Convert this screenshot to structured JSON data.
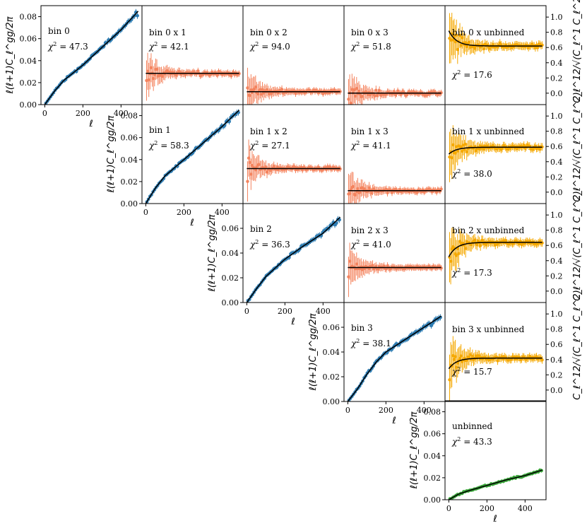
{
  "figure": {
    "auto_label": "ℓ(ℓ+1)C_ℓ^gg/2π",
    "ratio_label": "C_ℓ^12/√(C_ℓ^1 C_ℓ^2)",
    "x_label": "ℓ"
  },
  "colors": {
    "auto": "#2f7db3",
    "cross": "#f4845f",
    "unbinned": "#f5a800",
    "full": "#3aa63a",
    "model": "#000000"
  },
  "chart_data": [
    {
      "id": "bin0",
      "row": 0,
      "col": 0,
      "type": "scatter",
      "kind": "auto",
      "label": "bin 0",
      "chi2": "47.3",
      "ylim": [
        0,
        0.09
      ],
      "yticks": [
        "0.00",
        "0.02",
        "0.04",
        "0.06",
        "0.08"
      ],
      "ytick_values": [
        0,
        0.02,
        0.04,
        0.06,
        0.08
      ],
      "xticks": [
        "0",
        "200",
        "400"
      ],
      "xtick_values": [
        0,
        200,
        400
      ],
      "xlim": [
        -20,
        510
      ],
      "model": [
        [
          0,
          0
        ],
        [
          50,
          0.012
        ],
        [
          100,
          0.022
        ],
        [
          200,
          0.036
        ],
        [
          300,
          0.052
        ],
        [
          400,
          0.068
        ],
        [
          490,
          0.085
        ]
      ],
      "color": "#2f7db3"
    },
    {
      "id": "bin0x1",
      "row": 0,
      "col": 1,
      "type": "scatter",
      "kind": "cross",
      "label": "bin 0 x 1",
      "chi2": "42.1",
      "ylim": [
        -0.15,
        1.15
      ],
      "xlim": [
        -20,
        510
      ],
      "level": 0.26,
      "noise": 0.08,
      "color": "#f4845f"
    },
    {
      "id": "bin0x2",
      "row": 0,
      "col": 2,
      "type": "scatter",
      "kind": "cross",
      "label": "bin 0 x 2",
      "chi2": "94.0",
      "ylim": [
        -0.15,
        1.15
      ],
      "xlim": [
        -20,
        510
      ],
      "level": 0.02,
      "noise": 0.08,
      "color": "#f4845f"
    },
    {
      "id": "bin0x3",
      "row": 0,
      "col": 3,
      "type": "scatter",
      "kind": "cross",
      "label": "bin 0 x 3",
      "chi2": "51.8",
      "ylim": [
        -0.15,
        1.15
      ],
      "xlim": [
        -20,
        510
      ],
      "level": 0.0,
      "noise": 0.08,
      "color": "#f4845f"
    },
    {
      "id": "bin0xU",
      "row": 0,
      "col": 4,
      "type": "scatter",
      "kind": "ratio",
      "label": "bin 0 x unbinned",
      "chi2": "17.6",
      "ylim": [
        -0.15,
        1.15
      ],
      "yticks": [
        "0.0",
        "0.2",
        "0.4",
        "0.6",
        "0.8",
        "1.0"
      ],
      "ytick_values": [
        0,
        0.2,
        0.4,
        0.6,
        0.8,
        1.0
      ],
      "xlim": [
        -20,
        510
      ],
      "level": 0.62,
      "start": 0.82,
      "color": "#f5a800"
    },
    {
      "id": "bin1",
      "row": 1,
      "col": 1,
      "type": "scatter",
      "kind": "auto",
      "label": "bin 1",
      "chi2": "58.3",
      "ylim": [
        0,
        0.09
      ],
      "yticks": [
        "0.00",
        "0.02",
        "0.04",
        "0.06",
        "0.08"
      ],
      "ytick_values": [
        0,
        0.02,
        0.04,
        0.06,
        0.08
      ],
      "xticks": [
        "0",
        "200",
        "400"
      ],
      "xtick_values": [
        0,
        200,
        400
      ],
      "xlim": [
        -20,
        510
      ],
      "model": [
        [
          0,
          0
        ],
        [
          50,
          0.014
        ],
        [
          100,
          0.025
        ],
        [
          200,
          0.04
        ],
        [
          300,
          0.055
        ],
        [
          400,
          0.07
        ],
        [
          490,
          0.085
        ]
      ],
      "color": "#2f7db3"
    },
    {
      "id": "bin1x2",
      "row": 1,
      "col": 2,
      "type": "scatter",
      "kind": "cross",
      "label": "bin 1 x 2",
      "chi2": "27.1",
      "ylim": [
        -0.15,
        1.15
      ],
      "xlim": [
        -20,
        510
      ],
      "level": 0.31,
      "noise": 0.07,
      "color": "#f4845f"
    },
    {
      "id": "bin1x3",
      "row": 1,
      "col": 3,
      "type": "scatter",
      "kind": "cross",
      "label": "bin 1 x 3",
      "chi2": "41.1",
      "ylim": [
        -0.15,
        1.15
      ],
      "xlim": [
        -20,
        510
      ],
      "level": 0.02,
      "noise": 0.07,
      "color": "#f4845f"
    },
    {
      "id": "bin1xU",
      "row": 1,
      "col": 4,
      "type": "scatter",
      "kind": "ratio",
      "label": "bin 1 x unbinned",
      "chi2": "38.0",
      "ylim": [
        -0.15,
        1.15
      ],
      "yticks": [
        "0.0",
        "0.2",
        "0.4",
        "0.6",
        "0.8",
        "1.0"
      ],
      "ytick_values": [
        0,
        0.2,
        0.4,
        0.6,
        0.8,
        1.0
      ],
      "xlim": [
        -20,
        510
      ],
      "level": 0.59,
      "start": 0.5,
      "color": "#f5a800"
    },
    {
      "id": "bin2",
      "row": 2,
      "col": 2,
      "type": "scatter",
      "kind": "auto",
      "label": "bin 2",
      "chi2": "36.3",
      "ylim": [
        0,
        0.08
      ],
      "yticks": [
        "0.00",
        "0.02",
        "0.04",
        "0.06"
      ],
      "ytick_values": [
        0,
        0.02,
        0.04,
        0.06
      ],
      "xticks": [
        "0",
        "200",
        "400"
      ],
      "xtick_values": [
        0,
        200,
        400
      ],
      "xlim": [
        -20,
        510
      ],
      "model": [
        [
          0,
          0
        ],
        [
          50,
          0.011
        ],
        [
          100,
          0.021
        ],
        [
          200,
          0.035
        ],
        [
          300,
          0.046
        ],
        [
          400,
          0.056
        ],
        [
          490,
          0.069
        ]
      ],
      "color": "#2f7db3"
    },
    {
      "id": "bin2x3",
      "row": 2,
      "col": 3,
      "type": "scatter",
      "kind": "cross",
      "label": "bin 2 x 3",
      "chi2": "41.0",
      "ylim": [
        -0.15,
        1.15
      ],
      "xlim": [
        -20,
        510
      ],
      "level": 0.31,
      "noise": 0.06,
      "color": "#f4845f"
    },
    {
      "id": "bin2xU",
      "row": 2,
      "col": 4,
      "type": "scatter",
      "kind": "ratio",
      "label": "bin 2 x unbinned",
      "chi2": "17.3",
      "ylim": [
        -0.15,
        1.15
      ],
      "yticks": [
        "0.0",
        "0.2",
        "0.4",
        "0.6",
        "0.8",
        "1.0"
      ],
      "ytick_values": [
        0,
        0.2,
        0.4,
        0.6,
        0.8,
        1.0
      ],
      "xlim": [
        -20,
        510
      ],
      "level": 0.64,
      "start": 0.45,
      "color": "#f5a800"
    },
    {
      "id": "bin3",
      "row": 3,
      "col": 3,
      "type": "scatter",
      "kind": "auto",
      "label": "bin 3",
      "chi2": "38.1",
      "ylim": [
        0,
        0.08
      ],
      "yticks": [
        "0.00",
        "0.02",
        "0.04",
        "0.06"
      ],
      "ytick_values": [
        0,
        0.02,
        0.04,
        0.06
      ],
      "xticks": [
        "0",
        "200",
        "400"
      ],
      "xtick_values": [
        0,
        200,
        400
      ],
      "xlim": [
        -20,
        510
      ],
      "model": [
        [
          0,
          0
        ],
        [
          50,
          0.01
        ],
        [
          100,
          0.022
        ],
        [
          150,
          0.032
        ],
        [
          200,
          0.04
        ],
        [
          300,
          0.05
        ],
        [
          400,
          0.06
        ],
        [
          490,
          0.069
        ]
      ],
      "color": "#2f7db3"
    },
    {
      "id": "bin3xU",
      "row": 3,
      "col": 4,
      "type": "scatter",
      "kind": "ratio",
      "label": "bin 3 x unbinned",
      "chi2": "15.7",
      "ylim": [
        -0.15,
        1.15
      ],
      "yticks": [
        "0.0",
        "0.2",
        "0.4",
        "0.6",
        "0.8",
        "1.0"
      ],
      "ytick_values": [
        0,
        0.2,
        0.4,
        0.6,
        0.8,
        1.0
      ],
      "xlim": [
        -20,
        510
      ],
      "level": 0.42,
      "start": 0.28,
      "color": "#f5a800"
    },
    {
      "id": "unbinned",
      "row": 4,
      "col": 4,
      "type": "scatter",
      "kind": "auto",
      "label": "unbinned",
      "chi2": "43.3",
      "ylim": [
        0,
        0.09
      ],
      "yticks": [
        "0.00",
        "0.02",
        "0.04",
        "0.06",
        "0.08"
      ],
      "ytick_values": [
        0,
        0.02,
        0.04,
        0.06,
        0.08
      ],
      "xticks": [
        "0",
        "200",
        "400"
      ],
      "xtick_values": [
        0,
        200,
        400
      ],
      "xlim": [
        -20,
        510
      ],
      "model": [
        [
          0,
          0
        ],
        [
          50,
          0.005
        ],
        [
          100,
          0.008
        ],
        [
          200,
          0.013
        ],
        [
          300,
          0.018
        ],
        [
          400,
          0.022
        ],
        [
          490,
          0.027
        ]
      ],
      "color": "#3aa63a"
    }
  ]
}
